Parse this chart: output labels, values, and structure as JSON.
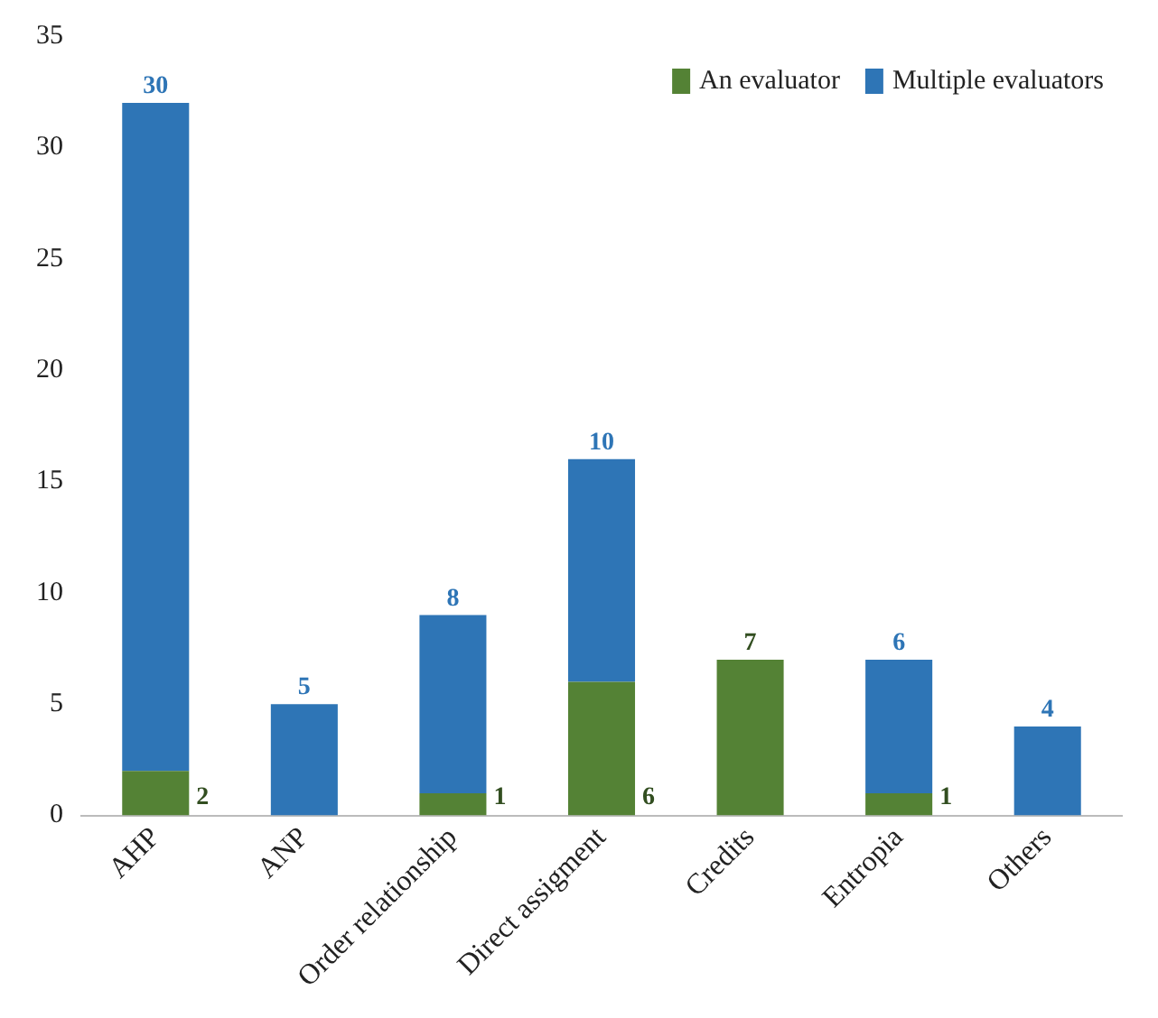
{
  "chart_data": {
    "type": "bar",
    "stacked": true,
    "categories": [
      "AHP",
      "ANP",
      "Order relationship",
      "Direct assigment",
      "Credits",
      "Entropia",
      "Others"
    ],
    "series": [
      {
        "name": "An evaluator",
        "color": "#548235",
        "values": [
          2,
          0,
          1,
          6,
          7,
          1,
          0
        ],
        "value_labels": [
          "2",
          null,
          "1",
          "6",
          "7",
          "1",
          null
        ]
      },
      {
        "name": "Multiple evaluators",
        "color": "#2e75b6",
        "values": [
          30,
          5,
          8,
          10,
          0,
          6,
          4
        ],
        "value_labels": [
          "30",
          "5",
          "8",
          "10",
          null,
          "6",
          "4"
        ]
      }
    ],
    "ylim": [
      0,
      35
    ],
    "yticks": [
      0,
      5,
      10,
      15,
      20,
      25,
      30,
      35
    ],
    "grid": false,
    "legend": "top right"
  }
}
